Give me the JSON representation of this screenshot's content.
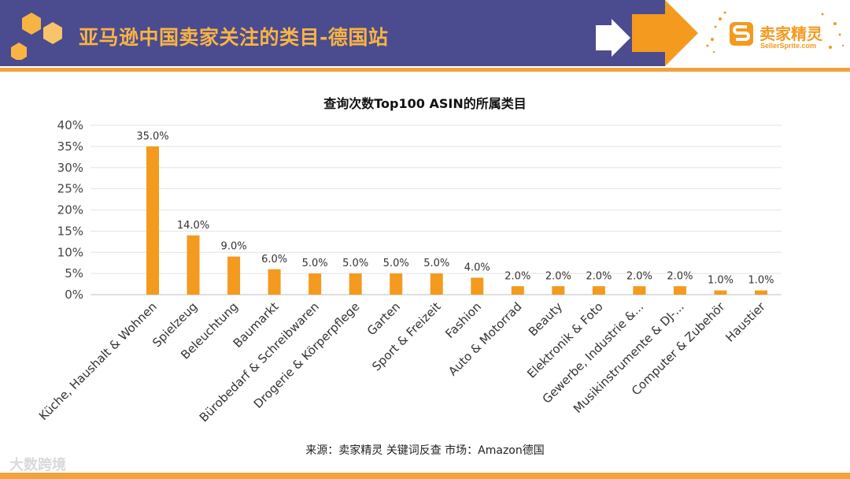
{
  "header": {
    "title": "亚马逊中国卖家关注的类目-德国站",
    "logo_text": "卖家精灵",
    "logo_url": "SellerSprite.com"
  },
  "colors": {
    "bar": "#f39a1f",
    "header_band": "#4b4b8f",
    "accent": "#f4a23c"
  },
  "chart_data": {
    "type": "bar",
    "title": "查询次数Top100 ASIN的所属类目",
    "categories": [
      "Küche, Haushalt & Wohnen",
      "Spielzeug",
      "Beleuchtung",
      "Baumarkt",
      "Bürobedarf & Schreibwaren",
      "Drogerie & Körperpflege",
      "Garten",
      "Sport & Freizeit",
      "Fashion",
      "Auto & Motorrad",
      "Beauty",
      "Elektronik & Foto",
      "Gewerbe, Industrie &...",
      "Musikinstrumente & DJ-...",
      "Computer & Zubehör",
      "Haustier"
    ],
    "values": [
      35,
      14,
      9,
      6,
      5,
      5,
      5,
      5,
      4,
      2,
      2,
      2,
      2,
      2,
      1,
      1
    ],
    "data_labels": [
      "35.0%",
      "14.0%",
      "9.0%",
      "6.0%",
      "5.0%",
      "5.0%",
      "5.0%",
      "5.0%",
      "4.0%",
      "2.0%",
      "2.0%",
      "2.0%",
      "2.0%",
      "2.0%",
      "1.0%",
      "1.0%"
    ],
    "y_ticks": [
      "0%",
      "5%",
      "10%",
      "15%",
      "20%",
      "25%",
      "30%",
      "35%",
      "40%"
    ],
    "ylim": [
      0,
      40
    ],
    "grid": true,
    "xlabel": "",
    "ylabel": ""
  },
  "source": "来源：卖家精灵 关键词反查   市场：Amazon德国",
  "watermark": "大数跨境"
}
